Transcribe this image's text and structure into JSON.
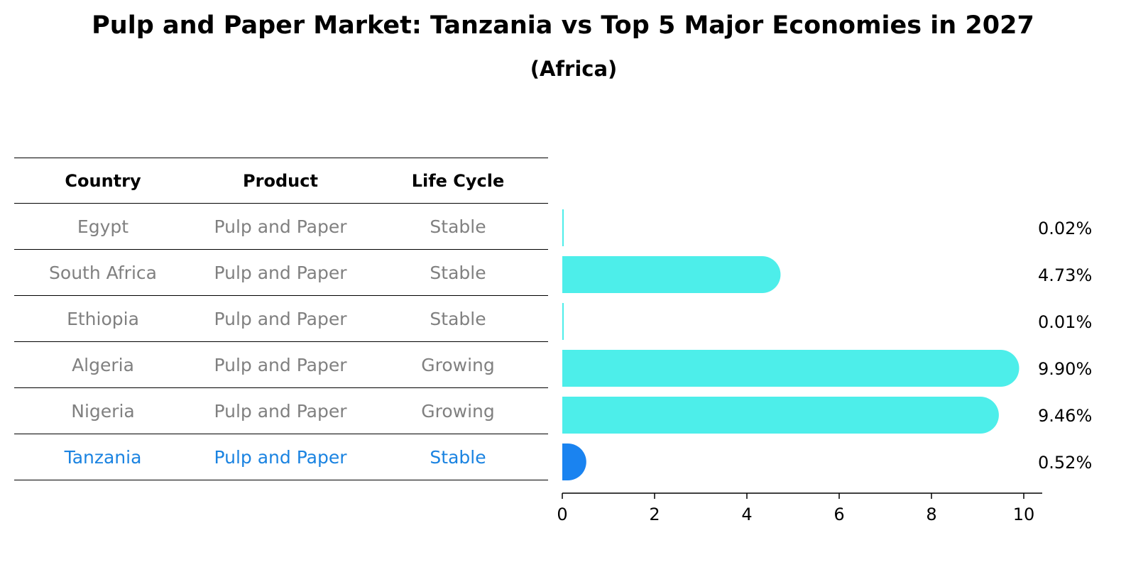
{
  "title": "Pulp and Paper Market: Tanzania vs Top 5 Major Economies in 2027",
  "subtitle": "(Africa)",
  "table": {
    "headers": [
      "Country",
      "Product",
      "Life Cycle"
    ],
    "rows": [
      {
        "country": "Egypt",
        "product": "Pulp and Paper",
        "life_cycle": "Stable"
      },
      {
        "country": "South Africa",
        "product": "Pulp and Paper",
        "life_cycle": "Stable"
      },
      {
        "country": "Ethiopia",
        "product": "Pulp and Paper",
        "life_cycle": "Stable"
      },
      {
        "country": "Algeria",
        "product": "Pulp and Paper",
        "life_cycle": "Growing"
      },
      {
        "country": "Nigeria",
        "product": "Pulp and Paper",
        "life_cycle": "Growing"
      },
      {
        "country": "Tanzania",
        "product": "Pulp and Paper",
        "life_cycle": "Stable"
      }
    ]
  },
  "chart_data": {
    "type": "bar",
    "orientation": "horizontal",
    "categories": [
      "Egypt",
      "South Africa",
      "Ethiopia",
      "Algeria",
      "Nigeria",
      "Tanzania"
    ],
    "values": [
      0.02,
      4.73,
      0.01,
      9.9,
      9.46,
      0.52
    ],
    "value_labels": [
      "0.02%",
      "4.73%",
      "0.01%",
      "9.90%",
      "9.46%",
      "0.52%"
    ],
    "highlight": "Tanzania",
    "xlim": [
      0,
      10.4
    ],
    "xticks": [
      0,
      2,
      4,
      6,
      8,
      10
    ],
    "colors": {
      "default": "#4deeea",
      "highlight": "#1a83f0",
      "text_highlight": "#1a83e1",
      "text_default": "#808080"
    }
  }
}
